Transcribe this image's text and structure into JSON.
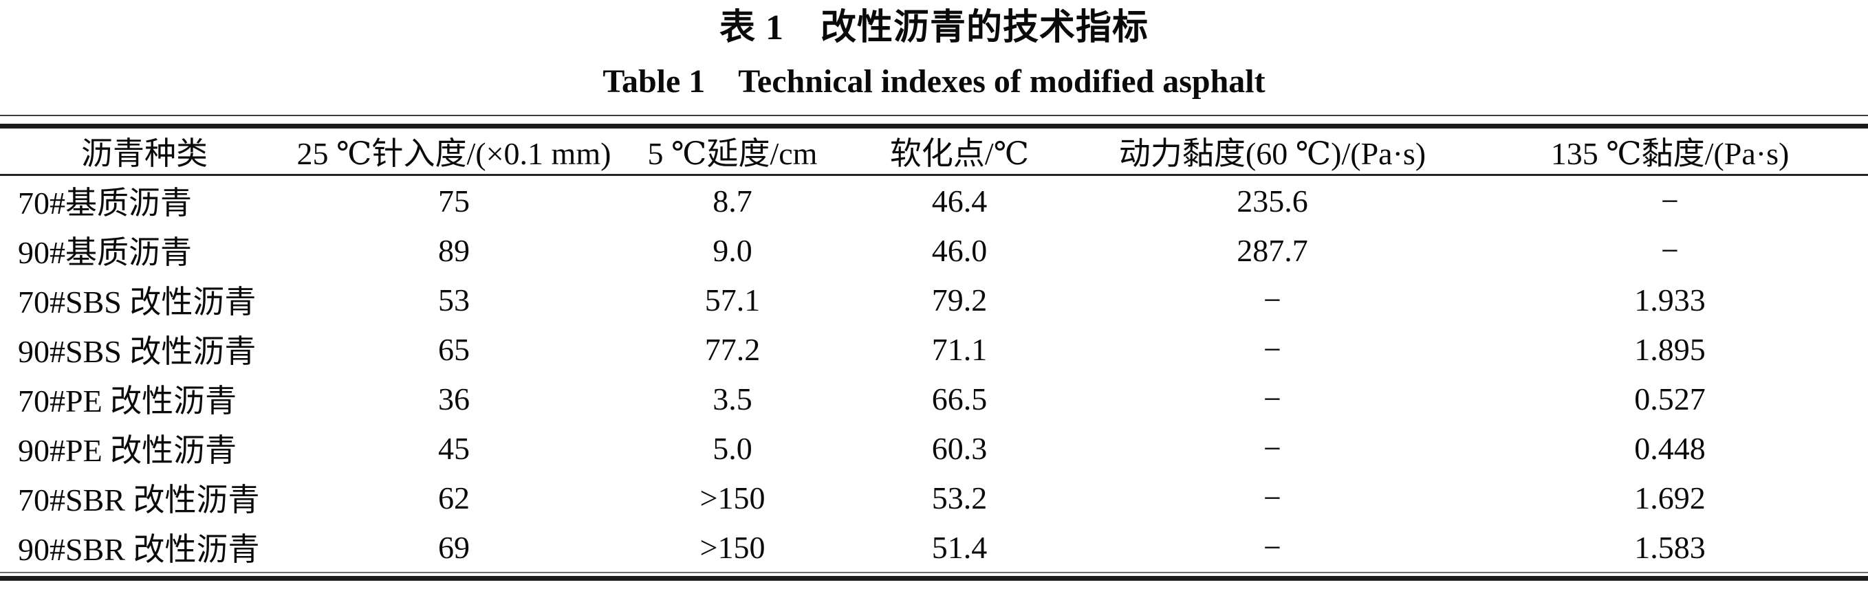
{
  "caption": {
    "zh": "表 1　改性沥青的技术指标",
    "en": "Table 1　Technical indexes of modified asphalt"
  },
  "table": {
    "columns": [
      "沥青种类",
      "25 ℃针入度/(×0.1 mm)",
      "5 ℃延度/cm",
      "软化点/℃",
      "动力黏度(60 ℃)/(Pa·s)",
      "135 ℃黏度/(Pa·s)"
    ],
    "rows": [
      [
        "70#基质沥青",
        "75",
        "8.7",
        "46.4",
        "235.6",
        "−"
      ],
      [
        "90#基质沥青",
        "89",
        "9.0",
        "46.0",
        "287.7",
        "−"
      ],
      [
        "70#SBS 改性沥青",
        "53",
        "57.1",
        "79.2",
        "−",
        "1.933"
      ],
      [
        "90#SBS 改性沥青",
        "65",
        "77.2",
        "71.1",
        "−",
        "1.895"
      ],
      [
        "70#PE 改性沥青",
        "36",
        "3.5",
        "66.5",
        "−",
        "0.527"
      ],
      [
        "90#PE 改性沥青",
        "45",
        "5.0",
        "60.3",
        "−",
        "0.448"
      ],
      [
        "70#SBR 改性沥青",
        "62",
        ">150",
        "53.2",
        "−",
        "1.692"
      ],
      [
        "90#SBR 改性沥青",
        "69",
        ">150",
        "51.4",
        "−",
        "1.583"
      ]
    ]
  }
}
